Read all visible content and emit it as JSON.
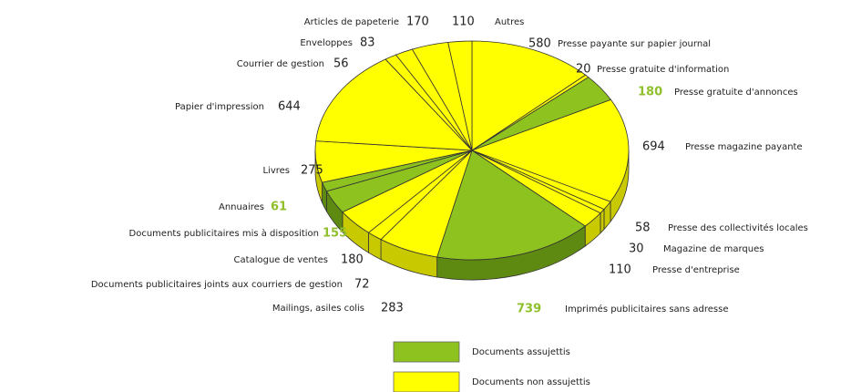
{
  "chart_data": {
    "type": "pie",
    "categories": [
      "Presse payante sur papier journal",
      "Presse gratuite d'information",
      "Presse gratuite d'annonces",
      "Presse magazine payante",
      "Presse des collectivités locales",
      "Magazine de marques",
      "Presse d'entreprise",
      "Imprimés publicitaires sans adresse",
      "Mailings, asiles colis",
      "Documents publicitaires joints aux courriers de gestion",
      "Catalogue de ventes",
      "Documents publicitaires mis à disposition",
      "Annuaires",
      "Livres",
      "Papier d'impression",
      "Courrier de gestion",
      "Enveloppes",
      "Articles de papeterie",
      "Autres"
    ],
    "values": [
      580,
      20,
      180,
      694,
      58,
      30,
      110,
      739,
      283,
      72,
      180,
      155,
      61,
      275,
      644,
      56,
      83,
      170,
      110
    ],
    "colors": [
      "#ffff00",
      "#ffff00",
      "#8dc21f",
      "#ffff00",
      "#ffff00",
      "#ffff00",
      "#ffff00",
      "#8dc21f",
      "#ffff00",
      "#ffff00",
      "#ffff00",
      "#8dc21f",
      "#8dc21f",
      "#ffff00",
      "#ffff00",
      "#ffff00",
      "#ffff00",
      "#ffff00",
      "#ffff00"
    ],
    "legend": [
      {
        "name": "Documents assujettis",
        "color": "#8dc21f"
      },
      {
        "name": "Documents non assujettis",
        "color": "#ffff00"
      }
    ]
  }
}
